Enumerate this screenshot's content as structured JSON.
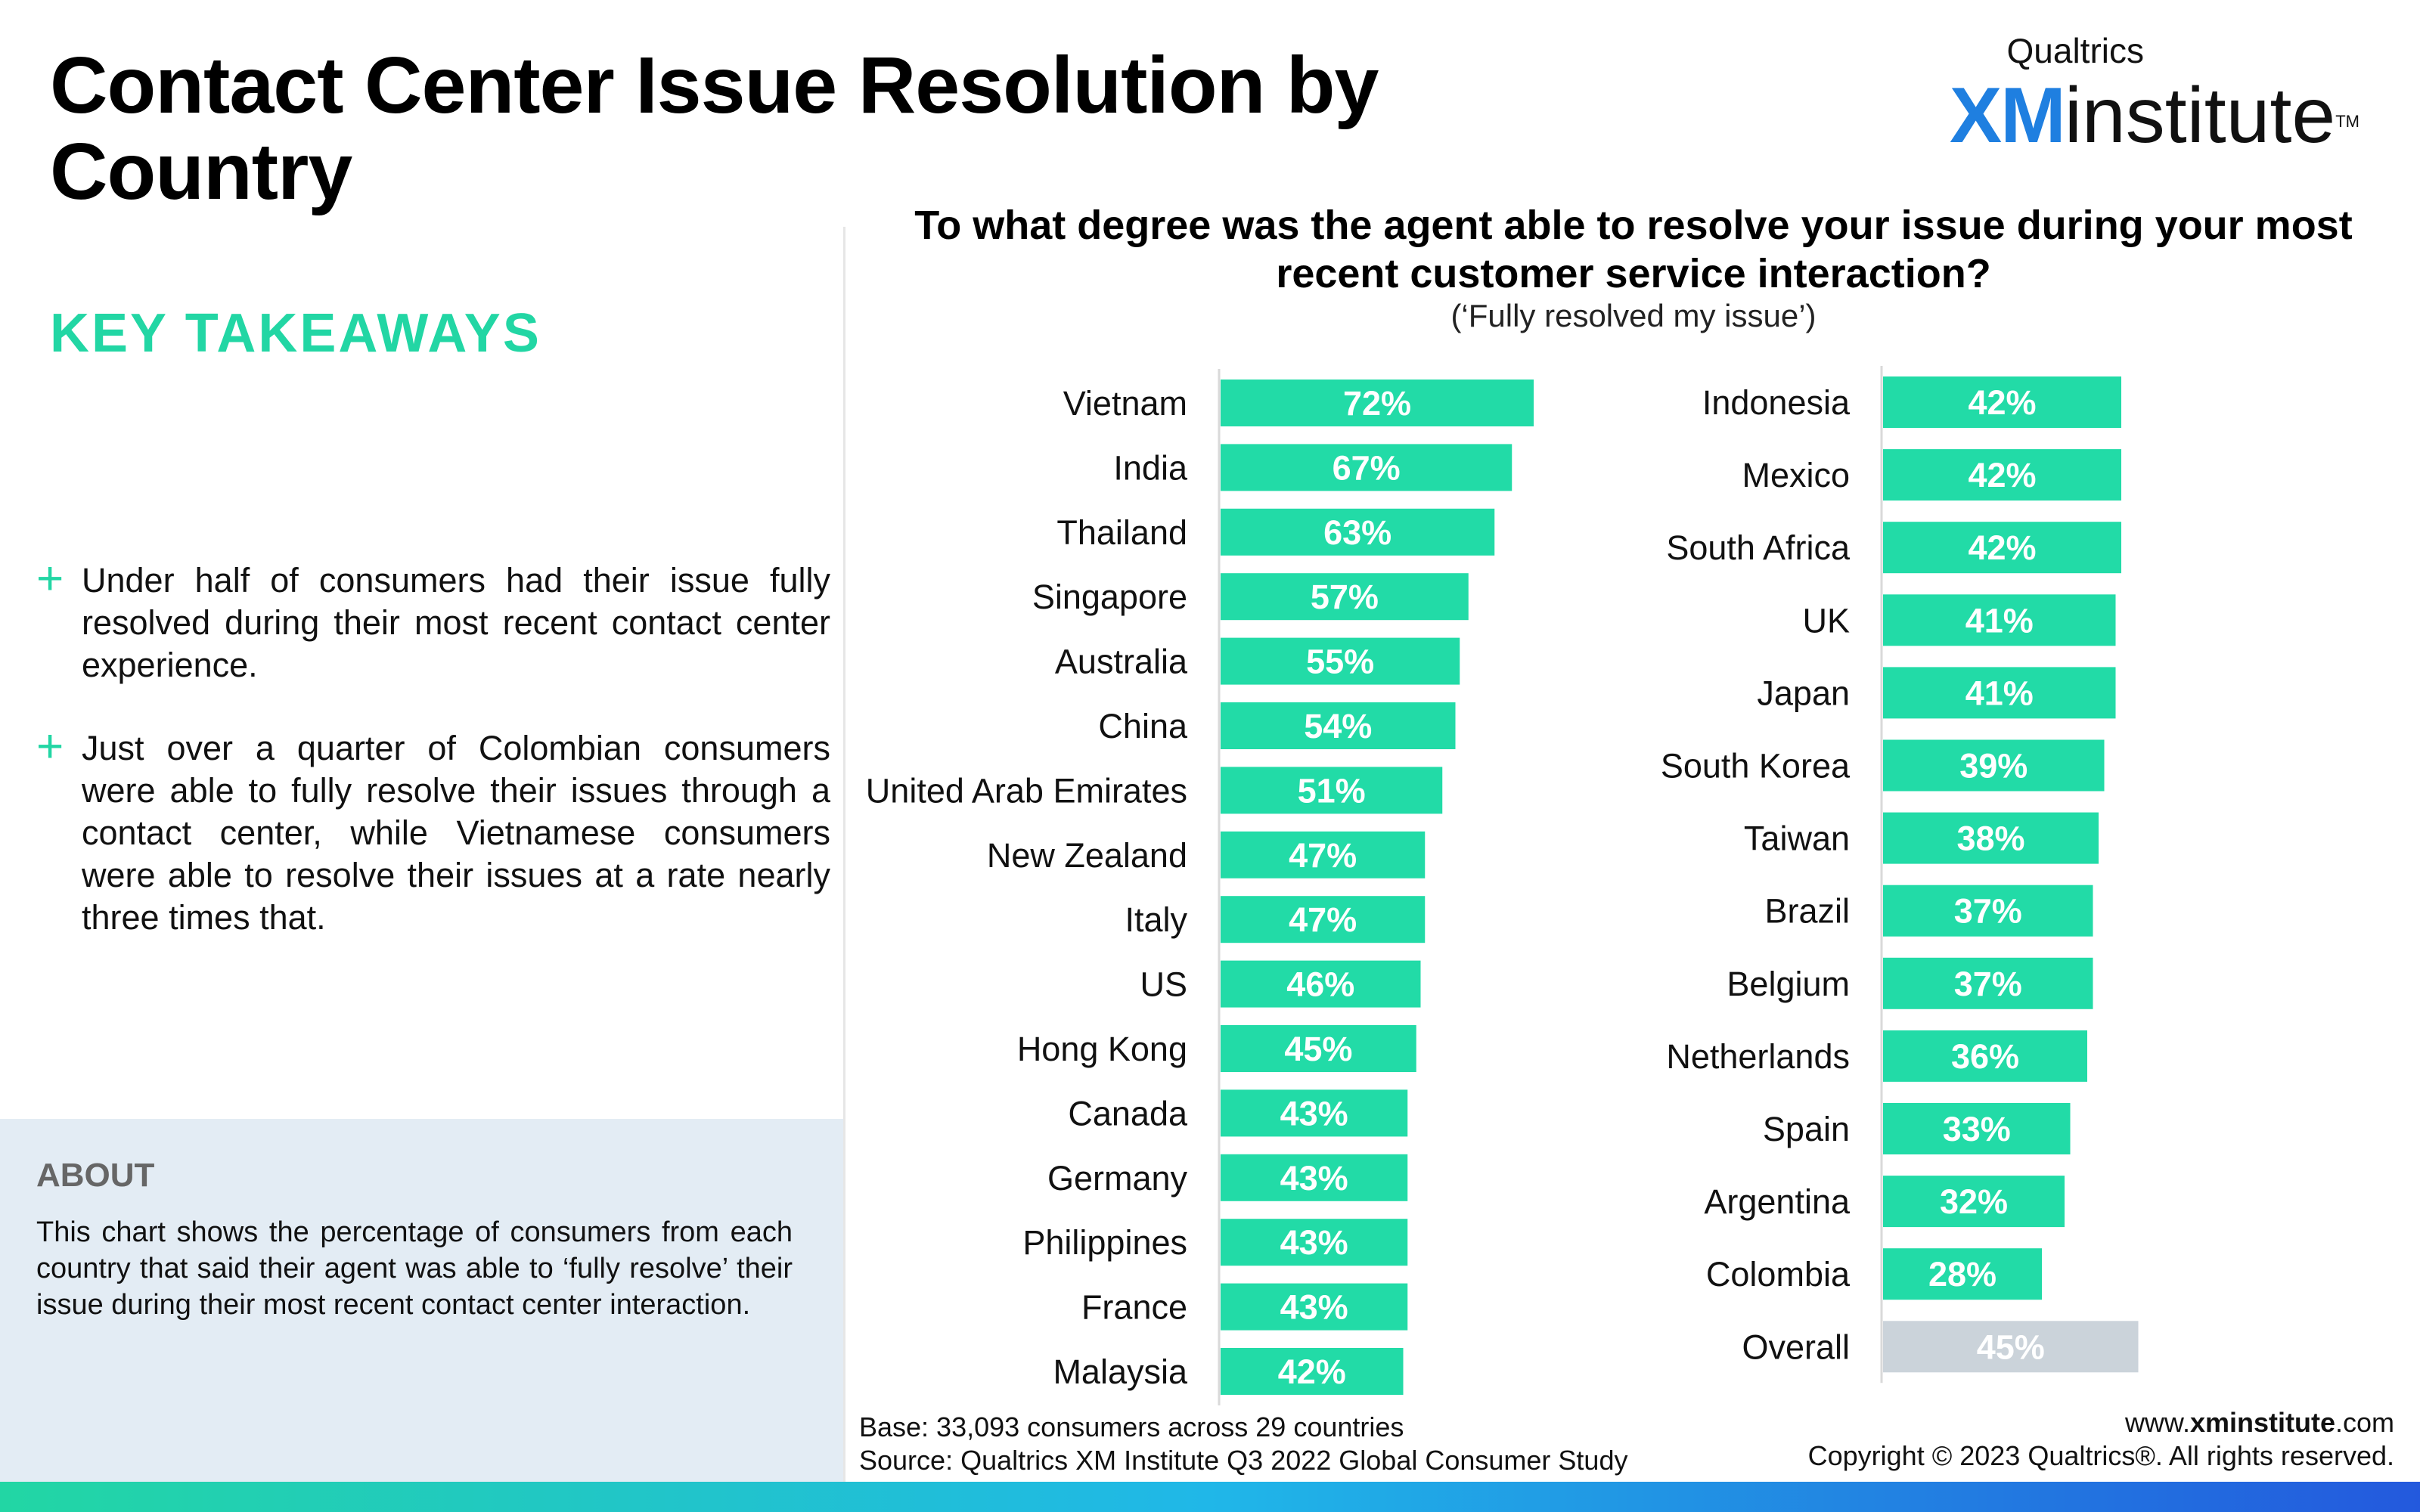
{
  "page": {
    "title": "Contact Center Issue Resolution by Country"
  },
  "brand": {
    "top": "Qualtrics",
    "xm": "XM",
    "institute": "institute",
    "tm": "TM",
    "accent_color": "#1f7fe0"
  },
  "takeaways": {
    "heading": "KEY TAKEAWAYS",
    "bullet_symbol": "+",
    "items": [
      "Under half of consumers had their issue fully resolved during their most recent contact center experience.",
      "Just over a quarter of Colombian consumers were able to fully resolve their issues through a contact center, while Vietnamese consumers were able to resolve their issues at a rate nearly three times that."
    ]
  },
  "about": {
    "heading": "ABOUT",
    "text": "This chart shows the percentage of consumers from each country that said their agent was able to ‘fully resolve’ their issue during their most recent contact center interaction."
  },
  "chart_data": {
    "type": "bar",
    "orientation": "horizontal",
    "title": "To what degree was the agent able to resolve your issue during your most recent customer service interaction?",
    "subtitle": "(‘Fully resolved my issue’)",
    "bar_color": "#22dba7",
    "overall_color": "#cbd3da",
    "xlim": [
      0,
      100
    ],
    "grid": false,
    "panels": [
      {
        "categories": [
          "Vietnam",
          "India",
          "Thailand",
          "Singapore",
          "Australia",
          "China",
          "United Arab Emirates",
          "New Zealand",
          "Italy",
          "US",
          "Hong Kong",
          "Canada",
          "Germany",
          "Philippines",
          "France",
          "Malaysia"
        ],
        "values": [
          72,
          67,
          63,
          57,
          55,
          54,
          51,
          47,
          47,
          46,
          45,
          43,
          43,
          43,
          43,
          42
        ],
        "labels": [
          "72%",
          "67%",
          "63%",
          "57%",
          "55%",
          "54%",
          "51%",
          "47%",
          "47%",
          "46%",
          "45%",
          "43%",
          "43%",
          "43%",
          "43%",
          "42%"
        ]
      },
      {
        "categories": [
          "Indonesia",
          "Mexico",
          "South Africa",
          "UK",
          "Japan",
          "South Korea",
          "Taiwan",
          "Brazil",
          "Belgium",
          "Netherlands",
          "Spain",
          "Argentina",
          "Colombia",
          "Overall"
        ],
        "values": [
          42,
          42,
          42,
          41,
          41,
          39,
          38,
          37,
          37,
          36,
          33,
          32,
          28,
          45
        ],
        "labels": [
          "42%",
          "42%",
          "42%",
          "41%",
          "41%",
          "39%",
          "38%",
          "37%",
          "37%",
          "36%",
          "33%",
          "32%",
          "28%",
          "45%"
        ],
        "highlight_last": true
      }
    ]
  },
  "footer": {
    "base": "Base: 33,093 consumers across 29 countries",
    "source": "Source: Qualtrics XM Institute Q3 2022 Global Consumer Study",
    "url_bold": "xminstitute",
    "url_prefix": "www.",
    "url_suffix": ".com",
    "copyright": "Copyright © 2023 Qualtrics®. All rights reserved."
  }
}
